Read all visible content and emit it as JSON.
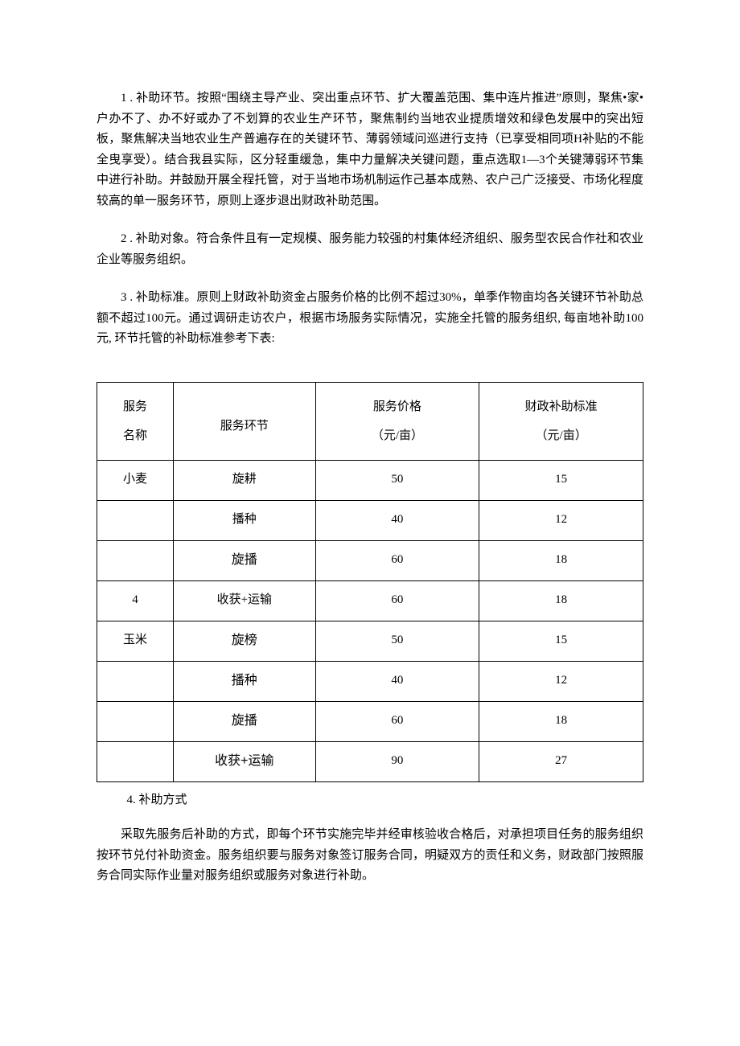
{
  "paragraphs": {
    "p1": "1 . 补助环节。按照“围绕主导产业、突出重点环节、扩大覆盖范围、集中连片推进”原则，聚焦•家•户办不了、办不好或办了不划算的农业生产环节，聚焦制约当地农业提质增效和绿色发展中的突出短板，聚焦解决当地农业生产普遍存在的关键环节、薄弱领域问巡进行支持（已享受相同项H补贴的不能全曳享受）。结合我县实际，区分轻重缓急，集中力量解决关键问题，重点选取1—3个关键薄弱环节集中进行补助。并鼓励开展全程托管，对于当地市场机制运作己基本成熟、农户己广泛接受、市场化程度较高的单一服务环节，原则上逐步退出财政补助范围。",
    "p2": "2 . 补助对象。符合条件且有一定规模、服务能力较强的村集体经济组织、服务型农民合作社和农业企业等服务组织。",
    "p3": "3 . 补助标准。原则上财政补助资金占服务价格的比例不超过30%，单季作物亩均各关键环节补助总额不超过100元。通过调研走访农户，根据市场服务实际情况，实施全托管的服务组织, 每亩地补助100元, 环节托管的补助标准参考下表:",
    "p4_title": "4. 补助方式",
    "p4_body": "采取先服务后补助的方式，即每个环节实施完毕并经审核验收合格后，对承担项目任务的服务组织按环节兑付补助资金。服务组织要与服务对象签订服务合同，明疑双方的贡任和义务，财政部门按照服务合同实际作业量对服务组织或服务对象进行补助。"
  },
  "table": {
    "header": {
      "c1_top": "服务",
      "c1_bottom": "名称",
      "c2": "服务环节",
      "c3_top": "服务价格",
      "c3_bottom": "（元/亩）",
      "c4_top": "财政补助标准",
      "c4_bottom": "（元/亩）"
    },
    "rows": [
      {
        "c1": "小麦",
        "c2": "旋耕",
        "c3": "50",
        "c4": "15",
        "c2_sans": false
      },
      {
        "c1": "",
        "c2": "播种",
        "c3": "40",
        "c4": "12",
        "c2_sans": false
      },
      {
        "c1": "",
        "c2": "旋播",
        "c3": "60",
        "c4": "18",
        "c2_sans": true
      },
      {
        "c1": "4",
        "c2": "收获+运输",
        "c3": "60",
        "c4": "18",
        "c2_sans": false
      },
      {
        "c1": "玉米",
        "c2": "旋榜",
        "c3": "50",
        "c4": "15",
        "c2_sans": true
      },
      {
        "c1": "",
        "c2": "播种",
        "c3": "40",
        "c4": "12",
        "c2_sans": true
      },
      {
        "c1": "",
        "c2": "旋播",
        "c3": "60",
        "c4": "18",
        "c2_sans": true
      },
      {
        "c1": "",
        "c2": "收获+运输",
        "c3": "90",
        "c4": "27",
        "c2_sans": true
      }
    ]
  },
  "styles": {
    "body_font_size": 15,
    "text_color": "#000000",
    "background_color": "#ffffff",
    "border_color": "#000000"
  }
}
